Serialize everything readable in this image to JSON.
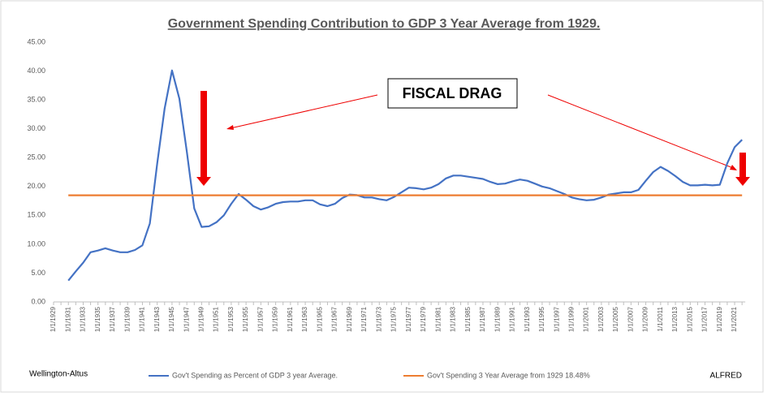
{
  "chart_data": {
    "type": "line",
    "title": "Government Spending Contribution to GDP 3 Year Average from 1929.",
    "categories": [
      "1/1/1929",
      null,
      "1/1/1931",
      null,
      "1/1/1933",
      null,
      "1/1/1935",
      null,
      "1/1/1937",
      null,
      "1/1/1939",
      null,
      "1/1/1941",
      null,
      "1/1/1943",
      null,
      "1/1/1945",
      null,
      "1/1/1947",
      null,
      "1/1/1949",
      null,
      "1/1/1951",
      null,
      "1/1/1953",
      null,
      "1/1/1955",
      null,
      "1/1/1957",
      null,
      "1/1/1959",
      null,
      "1/1/1961",
      null,
      "1/1/1963",
      null,
      "1/1/1965",
      null,
      "1/1/1967",
      null,
      "1/1/1969",
      null,
      "1/1/1971",
      null,
      "1/1/1973",
      null,
      "1/1/1975",
      null,
      "1/1/1977",
      null,
      "1/1/1979",
      null,
      "1/1/1981",
      null,
      "1/1/1983",
      null,
      "1/1/1985",
      null,
      "1/1/1987",
      null,
      "1/1/1989",
      null,
      "1/1/1991",
      null,
      "1/1/1993",
      null,
      "1/1/1995",
      null,
      "1/1/1997",
      null,
      "1/1/1999",
      null,
      "1/1/2001",
      null,
      "1/1/2003",
      null,
      "1/1/2005",
      null,
      "1/1/2007",
      null,
      "1/1/2009",
      null,
      "1/1/2011",
      null,
      "1/1/2013",
      null,
      "1/1/2015",
      null,
      "1/1/2017",
      null,
      "1/1/2019",
      null,
      "1/1/2021",
      null
    ],
    "series": [
      {
        "name": "Gov't Spending as Percent of GDP 3 year Average.",
        "color": "#4472c4",
        "values": [
          null,
          null,
          3.7,
          5.3,
          6.8,
          8.6,
          8.9,
          9.3,
          8.9,
          8.6,
          8.6,
          9.0,
          9.8,
          13.6,
          24,
          33.5,
          40.1,
          35.2,
          26,
          16.2,
          13.0,
          13.1,
          13.8,
          15.0,
          17.0,
          18.7,
          17.7,
          16.6,
          16.0,
          16.4,
          17.0,
          17.3,
          17.4,
          17.4,
          17.6,
          17.6,
          16.9,
          16.6,
          17.0,
          18.0,
          18.6,
          18.5,
          18.1,
          18.1,
          17.8,
          17.6,
          18.2,
          19.0,
          19.8,
          19.7,
          19.5,
          19.8,
          20.4,
          21.4,
          21.9,
          21.9,
          21.7,
          21.5,
          21.3,
          20.8,
          20.4,
          20.5,
          20.9,
          21.2,
          21.0,
          20.5,
          20.0,
          19.7,
          19.2,
          18.7,
          18.1,
          17.8,
          17.6,
          17.7,
          18.1,
          18.6,
          18.8,
          19.0,
          19.0,
          19.4,
          21.0,
          22.5,
          23.4,
          22.7,
          21.8,
          20.8,
          20.2,
          20.2,
          20.3,
          20.2,
          20.3,
          24,
          26.8,
          28.1
        ]
      },
      {
        "name": "Gov't Spending 3 Year Average from 1929 18.48%",
        "color": "#ed7d31",
        "values": [
          null,
          null,
          18.48,
          18.48,
          18.48,
          18.48,
          18.48,
          18.48,
          18.48,
          18.48,
          18.48,
          18.48,
          18.48,
          18.48,
          18.48,
          18.48,
          18.48,
          18.48,
          18.48,
          18.48,
          18.48,
          18.48,
          18.48,
          18.48,
          18.48,
          18.48,
          18.48,
          18.48,
          18.48,
          18.48,
          18.48,
          18.48,
          18.48,
          18.48,
          18.48,
          18.48,
          18.48,
          18.48,
          18.48,
          18.48,
          18.48,
          18.48,
          18.48,
          18.48,
          18.48,
          18.48,
          18.48,
          18.48,
          18.48,
          18.48,
          18.48,
          18.48,
          18.48,
          18.48,
          18.48,
          18.48,
          18.48,
          18.48,
          18.48,
          18.48,
          18.48,
          18.48,
          18.48,
          18.48,
          18.48,
          18.48,
          18.48,
          18.48,
          18.48,
          18.48,
          18.48,
          18.48,
          18.48,
          18.48,
          18.48,
          18.48,
          18.48,
          18.48,
          18.48,
          18.48,
          18.48,
          18.48,
          18.48,
          18.48,
          18.48,
          18.48,
          18.48,
          18.48,
          18.48,
          18.48,
          18.48,
          18.48,
          18.48,
          18.48
        ]
      }
    ],
    "ylim": [
      0,
      45
    ],
    "yticks": [
      {
        "value": 0,
        "label": "0.00"
      },
      {
        "value": 5,
        "label": "5.00"
      },
      {
        "value": 10,
        "label": "10.00"
      },
      {
        "value": 15,
        "label": "15.00"
      },
      {
        "value": 20,
        "label": "20.00"
      },
      {
        "value": 25,
        "label": "25.00"
      },
      {
        "value": 30,
        "label": "30.00"
      },
      {
        "value": 35,
        "label": "35.00"
      },
      {
        "value": 40,
        "label": "40.00"
      },
      {
        "value": 45,
        "label": "45.00"
      }
    ],
    "grid": false,
    "annotations": [
      "FISCAL DRAG"
    ],
    "source": "Wellington-Altus",
    "author": "ALFRED"
  }
}
